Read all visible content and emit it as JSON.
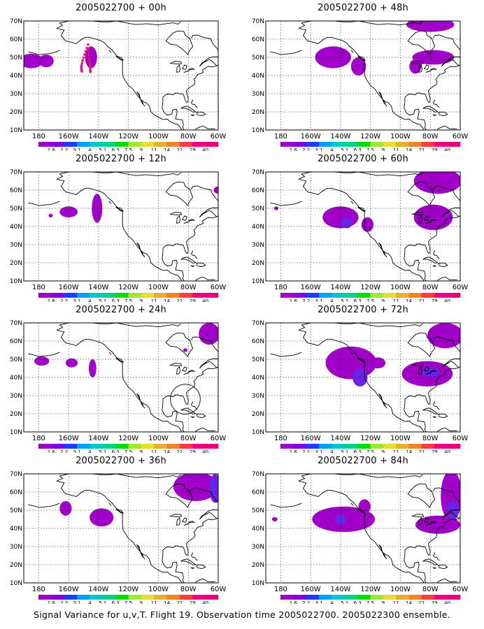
{
  "panels": [
    {
      "title": "2005022700 + 00h",
      "lead": "00h",
      "blobs": [
        {
          "lon": -185,
          "lat": 48,
          "rx": 8,
          "ry": 4,
          "level": 1
        },
        {
          "lon": -175,
          "lat": 48,
          "rx": 5,
          "ry": 3.5,
          "level": 1
        },
        {
          "lon": -145,
          "lat": 50,
          "rx": 4,
          "ry": 6,
          "level": 1
        }
      ],
      "dots": true,
      "circle": null
    },
    {
      "title": "2005022700 + 12h",
      "lead": "12h",
      "blobs": [
        {
          "lon": -160,
          "lat": 48,
          "rx": 6,
          "ry": 3,
          "level": 1
        },
        {
          "lon": -141,
          "lat": 50,
          "rx": 3.5,
          "ry": 8,
          "level": 1
        },
        {
          "lon": -172,
          "lat": 46,
          "rx": 1,
          "ry": 1,
          "level": 1
        },
        {
          "lon": -60,
          "lat": 60,
          "rx": 3,
          "ry": 2,
          "level": 1
        }
      ],
      "dots": false,
      "circle": null
    },
    {
      "title": "2005022700 + 24h",
      "lead": "24h",
      "blobs": [
        {
          "lon": -178,
          "lat": 49,
          "rx": 5,
          "ry": 2.5,
          "level": 1
        },
        {
          "lon": -158,
          "lat": 48,
          "rx": 4,
          "ry": 2.5,
          "level": 1
        },
        {
          "lon": -144,
          "lat": 45,
          "rx": 2.5,
          "ry": 5,
          "level": 1
        },
        {
          "lon": -66,
          "lat": 64,
          "rx": 7,
          "ry": 6,
          "level": 1
        },
        {
          "lon": -82,
          "lat": 55,
          "rx": 1,
          "ry": 1,
          "level": 1
        }
      ],
      "dots": false,
      "circle": {
        "lon": -82,
        "lat": 28,
        "r": 10
      }
    },
    {
      "title": "2005022700 + 36h",
      "lead": "36h",
      "blobs": [
        {
          "lon": -162,
          "lat": 51,
          "rx": 4,
          "ry": 4,
          "level": 1
        },
        {
          "lon": -138,
          "lat": 46,
          "rx": 8,
          "ry": 5,
          "level": 1
        },
        {
          "lon": -75,
          "lat": 63,
          "rx": 15,
          "ry": 8,
          "level": 1
        },
        {
          "lon": -62,
          "lat": 62,
          "rx": 4,
          "ry": 8,
          "level": 2
        }
      ],
      "dots": false,
      "circle": null
    },
    {
      "title": "2005022700 + 48h",
      "lead": "48h",
      "blobs": [
        {
          "lon": -145,
          "lat": 50,
          "rx": 12,
          "ry": 6,
          "level": 1
        },
        {
          "lon": -128,
          "lat": 45,
          "rx": 5,
          "ry": 5,
          "level": 1
        },
        {
          "lon": -78,
          "lat": 50,
          "rx": 14,
          "ry": 4,
          "level": 1
        },
        {
          "lon": -90,
          "lat": 45,
          "rx": 4,
          "ry": 4,
          "level": 1
        },
        {
          "lon": -80,
          "lat": 68,
          "rx": 16,
          "ry": 4,
          "level": 1
        }
      ],
      "dots": false,
      "circle": null
    },
    {
      "title": "2005022700 + 60h",
      "lead": "60h",
      "blobs": [
        {
          "lon": -140,
          "lat": 45,
          "rx": 12,
          "ry": 6,
          "level": 1
        },
        {
          "lon": -136,
          "lat": 42,
          "rx": 4,
          "ry": 3,
          "level": 2
        },
        {
          "lon": -122,
          "lat": 41,
          "rx": 4,
          "ry": 4,
          "level": 1
        },
        {
          "lon": -78,
          "lat": 45,
          "rx": 13,
          "ry": 7,
          "level": 1
        },
        {
          "lon": -75,
          "lat": 65,
          "rx": 16,
          "ry": 7,
          "level": 1
        },
        {
          "lon": -183,
          "lat": 50,
          "rx": 1.5,
          "ry": 1,
          "level": 1
        }
      ],
      "dots": false,
      "circle": null
    },
    {
      "title": "2005022700 + 72h",
      "lead": "72h",
      "blobs": [
        {
          "lon": -133,
          "lat": 48,
          "rx": 17,
          "ry": 9,
          "level": 1
        },
        {
          "lon": -127,
          "lat": 40,
          "rx": 5,
          "ry": 5,
          "level": 2
        },
        {
          "lon": -115,
          "lat": 48,
          "rx": 5,
          "ry": 3,
          "level": 1
        },
        {
          "lon": -82,
          "lat": 42,
          "rx": 17,
          "ry": 7,
          "level": 1
        },
        {
          "lon": -80,
          "lat": 43,
          "rx": 6,
          "ry": 3,
          "level": 2
        },
        {
          "lon": -70,
          "lat": 63,
          "rx": 12,
          "ry": 7,
          "level": 1
        }
      ],
      "dots": false,
      "circle": null
    },
    {
      "title": "2005022700 + 84h",
      "lead": "84h",
      "blobs": [
        {
          "lon": -138,
          "lat": 45,
          "rx": 21,
          "ry": 7,
          "level": 1
        },
        {
          "lon": -140,
          "lat": 45,
          "rx": 4,
          "ry": 3,
          "level": 2
        },
        {
          "lon": -124,
          "lat": 52,
          "rx": 4,
          "ry": 4,
          "level": 1
        },
        {
          "lon": -75,
          "lat": 42,
          "rx": 15,
          "ry": 5,
          "level": 1
        },
        {
          "lon": -66,
          "lat": 58,
          "rx": 7,
          "ry": 14,
          "level": 1
        },
        {
          "lon": -65,
          "lat": 50,
          "rx": 4,
          "ry": 5,
          "level": 2
        },
        {
          "lon": -184,
          "lat": 45,
          "rx": 1.8,
          "ry": 1.2,
          "level": 1
        }
      ],
      "dots": false,
      "circle": null
    }
  ],
  "axes": {
    "lat_labels": [
      "10N",
      "20N",
      "30N",
      "40N",
      "50N",
      "60N",
      "70N"
    ],
    "lat_values": [
      10,
      20,
      30,
      40,
      50,
      60,
      70
    ],
    "lon_labels": [
      "180",
      "160W",
      "140W",
      "120W",
      "100W",
      "80W",
      "60W"
    ],
    "lon_values": [
      -180,
      -160,
      -140,
      -120,
      -100,
      -80,
      -60
    ],
    "lon_range": [
      -190,
      -60
    ],
    "lat_range": [
      10,
      70
    ]
  },
  "colorbar": {
    "labels": [
      "1.6",
      "2.2",
      "3.1",
      "4",
      "5.1",
      "6.3",
      "7.5",
      "9",
      "11",
      "14",
      "21",
      "29",
      "40"
    ],
    "colors": [
      "#a000c8",
      "#8200dc",
      "#1e3cff",
      "#00a0ff",
      "#00c8c8",
      "#00d28c",
      "#00dc00",
      "#a0e632",
      "#e6dc32",
      "#e6af2d",
      "#f08228",
      "#fa3c3c",
      "#f00082",
      "#e6007a"
    ]
  },
  "caption": "Signal Variance for u,v,T. Flight 19. Observation time 2005022700. 2005022300 ensemble."
}
